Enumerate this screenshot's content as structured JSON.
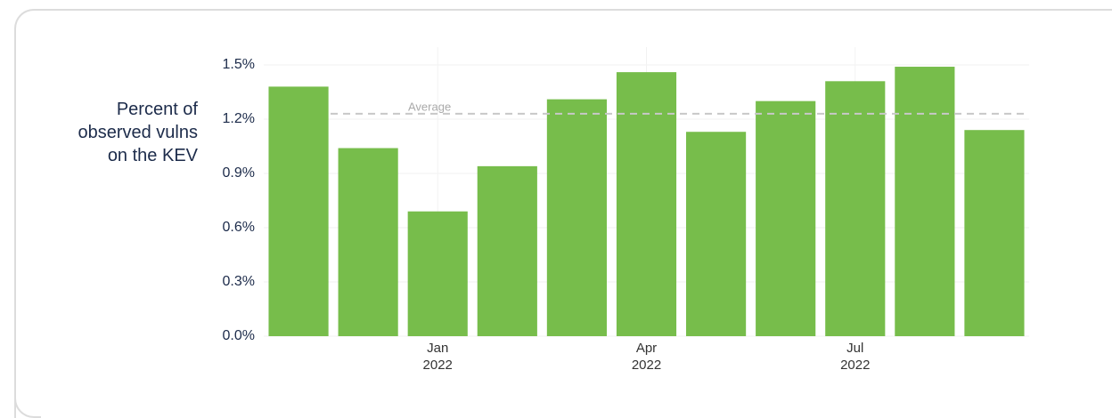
{
  "chart_data": {
    "type": "bar",
    "ylabel": "Percent of\nobserved vulns\non the KEV",
    "categories": [
      null,
      null,
      "Jan\n2022",
      null,
      null,
      "Apr\n2022",
      null,
      null,
      "Jul\n2022",
      null,
      null
    ],
    "values": [
      1.38,
      1.04,
      0.69,
      0.94,
      1.31,
      1.46,
      1.13,
      1.3,
      1.41,
      1.49,
      1.14
    ],
    "color": "#77bd4b",
    "ylim": [
      0,
      1.5
    ],
    "yticks": [
      {
        "value": 0,
        "label": "0.0%"
      },
      {
        "value": 0.3,
        "label": "0.3%"
      },
      {
        "value": 0.6,
        "label": "0.6%"
      },
      {
        "value": 0.9,
        "label": "0.9%"
      },
      {
        "value": 1.2,
        "label": "1.2%"
      },
      {
        "value": 1.5,
        "label": "1.5%"
      }
    ],
    "average": {
      "label": "Average",
      "value": 1.23
    },
    "grid": true
  }
}
